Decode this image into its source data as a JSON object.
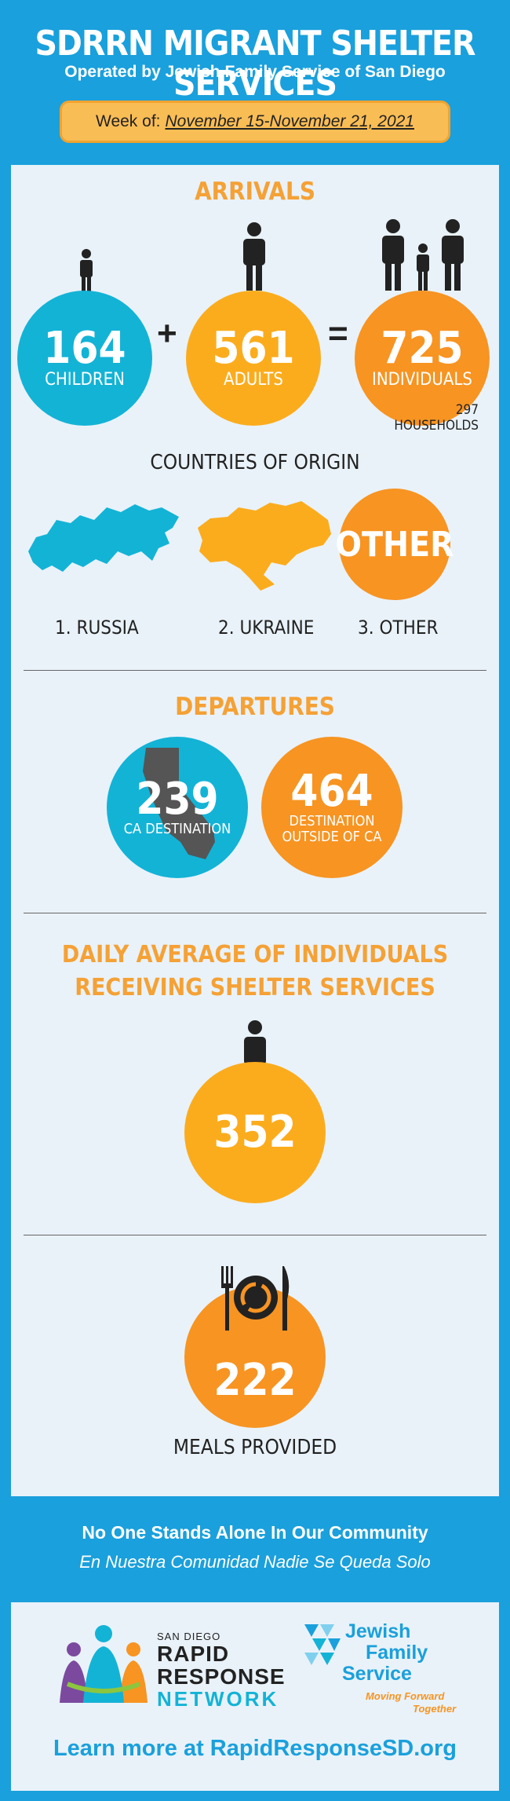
{
  "header": {
    "title": "SDRRN MIGRANT SHELTER SERVICES",
    "subtitle": "Operated by Jewish Family Service of San Diego",
    "week_label": "Week of:",
    "week_dates": "November 15-November 21, 2021"
  },
  "arrivals": {
    "heading": "ARRIVALS",
    "children_count": "164",
    "children_label": "CHILDREN",
    "plus": "+",
    "adults_count": "561",
    "adults_label": "ADULTS",
    "equals": "=",
    "individuals_count": "725",
    "individuals_label": "INDIVIDUALS",
    "households": "297 HOUSEHOLDS"
  },
  "countries": {
    "heading": "COUNTRIES OF ORIGIN",
    "other_badge": "OTHER",
    "items": [
      "1. RUSSIA",
      "2. UKRAINE",
      "3. OTHER"
    ]
  },
  "departures": {
    "heading": "DEPARTURES",
    "ca_count": "239",
    "ca_label": "CA DESTINATION",
    "outside_count": "464",
    "outside_label": "DESTINATION OUTSIDE OF CA"
  },
  "daily": {
    "heading_line1": "DAILY AVERAGE OF INDIVIDUALS",
    "heading_line2": "RECEIVING SHELTER SERVICES",
    "count": "352"
  },
  "meals": {
    "count": "222",
    "label": "MEALS PROVIDED"
  },
  "footer": {
    "line1": "No One Stands Alone In Our Community",
    "line2": "En Nuestra Comunidad Nadie Se Queda Solo",
    "sdrrn_small": "SAN DIEGO",
    "sdrrn_line1": "RAPID",
    "sdrrn_line2": "RESPONSE",
    "sdrrn_line3": "NETWORK",
    "jfs_line1": "Jewish",
    "jfs_line2": "Family",
    "jfs_line3": "Service",
    "jfs_tag1": "Moving Forward",
    "jfs_tag2": "Together",
    "learn_more": "Learn more at RapidResponseSD.org"
  },
  "colors": {
    "background": "#1aa0dc",
    "cyan": "#13b3d6",
    "orange": "#f79422",
    "yellow": "#fbac1d",
    "heading": "#f5a135"
  }
}
